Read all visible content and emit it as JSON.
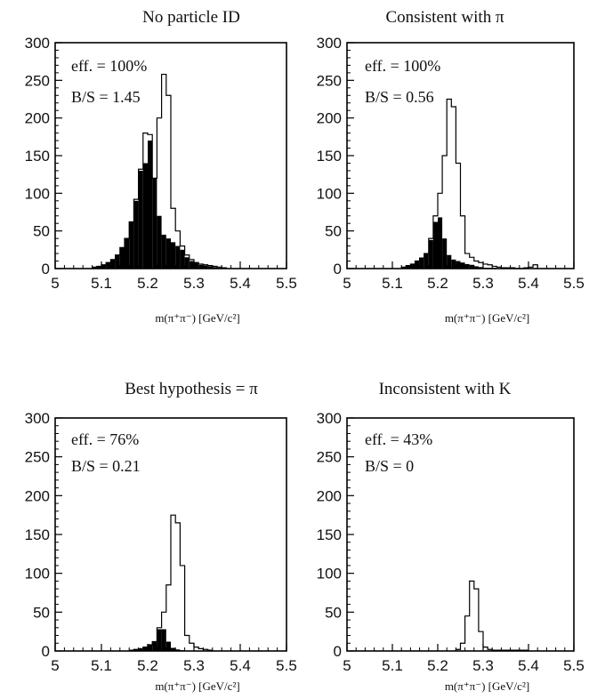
{
  "chart_data": [
    {
      "type": "bar",
      "title": "No particle ID",
      "annotations": [
        "eff. = 100%",
        "B/S = 1.45"
      ],
      "xlabel": "m(π⁺π⁻) [GeV/c²]",
      "ylim": [
        0,
        300
      ],
      "xlim": [
        5,
        5.5
      ],
      "yticks": [
        "0",
        "50",
        "100",
        "150",
        "200",
        "250",
        "300"
      ],
      "xticks": [
        "5",
        "5.1",
        "5.2",
        "5.3",
        "5.4",
        "5.5"
      ],
      "bin_start": 5.08,
      "bin_width": 0.01,
      "series": [
        {
          "values": [
            2,
            3,
            5,
            8,
            12,
            18,
            28,
            40,
            62,
            92,
            132,
            180,
            178,
            120,
            200,
            258,
            230,
            80,
            50,
            30,
            18,
            12,
            8,
            6,
            5,
            4,
            3,
            2,
            1
          ]
        },
        {
          "filled": true,
          "values": [
            2,
            3,
            5,
            8,
            12,
            18,
            28,
            40,
            62,
            90,
            130,
            140,
            170,
            120,
            70,
            45,
            40,
            35,
            30,
            25,
            15,
            10,
            8,
            5,
            4,
            3,
            2,
            1,
            1
          ]
        }
      ]
    },
    {
      "type": "bar",
      "title": "Consistent with π",
      "annotations": [
        "eff. = 100%",
        "B/S = 0.56"
      ],
      "xlabel": "m(π⁺π⁻) [GeV/c²]",
      "ylim": [
        0,
        300
      ],
      "xlim": [
        5,
        5.5
      ],
      "yticks": [
        "0",
        "50",
        "100",
        "150",
        "200",
        "250",
        "300"
      ],
      "xticks": [
        "5",
        "5.1",
        "5.2",
        "5.3",
        "5.4",
        "5.5"
      ],
      "bin_start": 5.12,
      "bin_width": 0.01,
      "series": [
        {
          "values": [
            2,
            4,
            6,
            10,
            14,
            20,
            40,
            70,
            100,
            150,
            225,
            215,
            140,
            70,
            20,
            15,
            10,
            8,
            6,
            5,
            3,
            2,
            1,
            1,
            1,
            0,
            0,
            1,
            2,
            5
          ]
        },
        {
          "filled": true,
          "values": [
            2,
            4,
            6,
            10,
            14,
            20,
            38,
            62,
            68,
            40,
            18,
            12,
            10,
            8,
            6,
            5,
            3,
            2,
            1,
            1,
            1,
            0,
            0,
            0,
            0,
            0,
            0,
            0,
            0,
            0
          ]
        }
      ]
    },
    {
      "type": "bar",
      "title": "Best hypothesis = π",
      "annotations": [
        "eff. = 76%",
        "B/S = 0.21"
      ],
      "xlabel": "m(π⁺π⁻) [GeV/c²]",
      "ylim": [
        0,
        300
      ],
      "xlim": [
        5,
        5.5
      ],
      "yticks": [
        "0",
        "50",
        "100",
        "150",
        "200",
        "250",
        "300"
      ],
      "xticks": [
        "5",
        "5.1",
        "5.2",
        "5.3",
        "5.4",
        "5.5"
      ],
      "bin_start": 5.16,
      "bin_width": 0.01,
      "series": [
        {
          "values": [
            1,
            2,
            3,
            5,
            8,
            12,
            30,
            50,
            85,
            175,
            165,
            110,
            20,
            10,
            5,
            3,
            2,
            1
          ]
        },
        {
          "filled": true,
          "values": [
            1,
            2,
            3,
            5,
            8,
            12,
            28,
            28,
            12,
            4,
            2,
            1,
            0,
            0,
            0,
            0,
            0,
            0
          ]
        }
      ]
    },
    {
      "type": "bar",
      "title": "Inconsistent with K",
      "annotations": [
        "eff. = 43%",
        "B/S = 0"
      ],
      "xlabel": "m(π⁺π⁻) [GeV/c²]",
      "ylim": [
        0,
        300
      ],
      "xlim": [
        5,
        5.5
      ],
      "yticks": [
        "0",
        "50",
        "100",
        "150",
        "200",
        "250",
        "300"
      ],
      "xticks": [
        "5",
        "5.1",
        "5.2",
        "5.3",
        "5.4",
        "5.5"
      ],
      "bin_start": 5.24,
      "bin_width": 0.01,
      "series": [
        {
          "values": [
            2,
            10,
            45,
            90,
            80,
            25,
            5,
            2,
            1,
            1,
            1,
            1,
            1,
            1,
            1,
            1
          ]
        }
      ]
    }
  ]
}
